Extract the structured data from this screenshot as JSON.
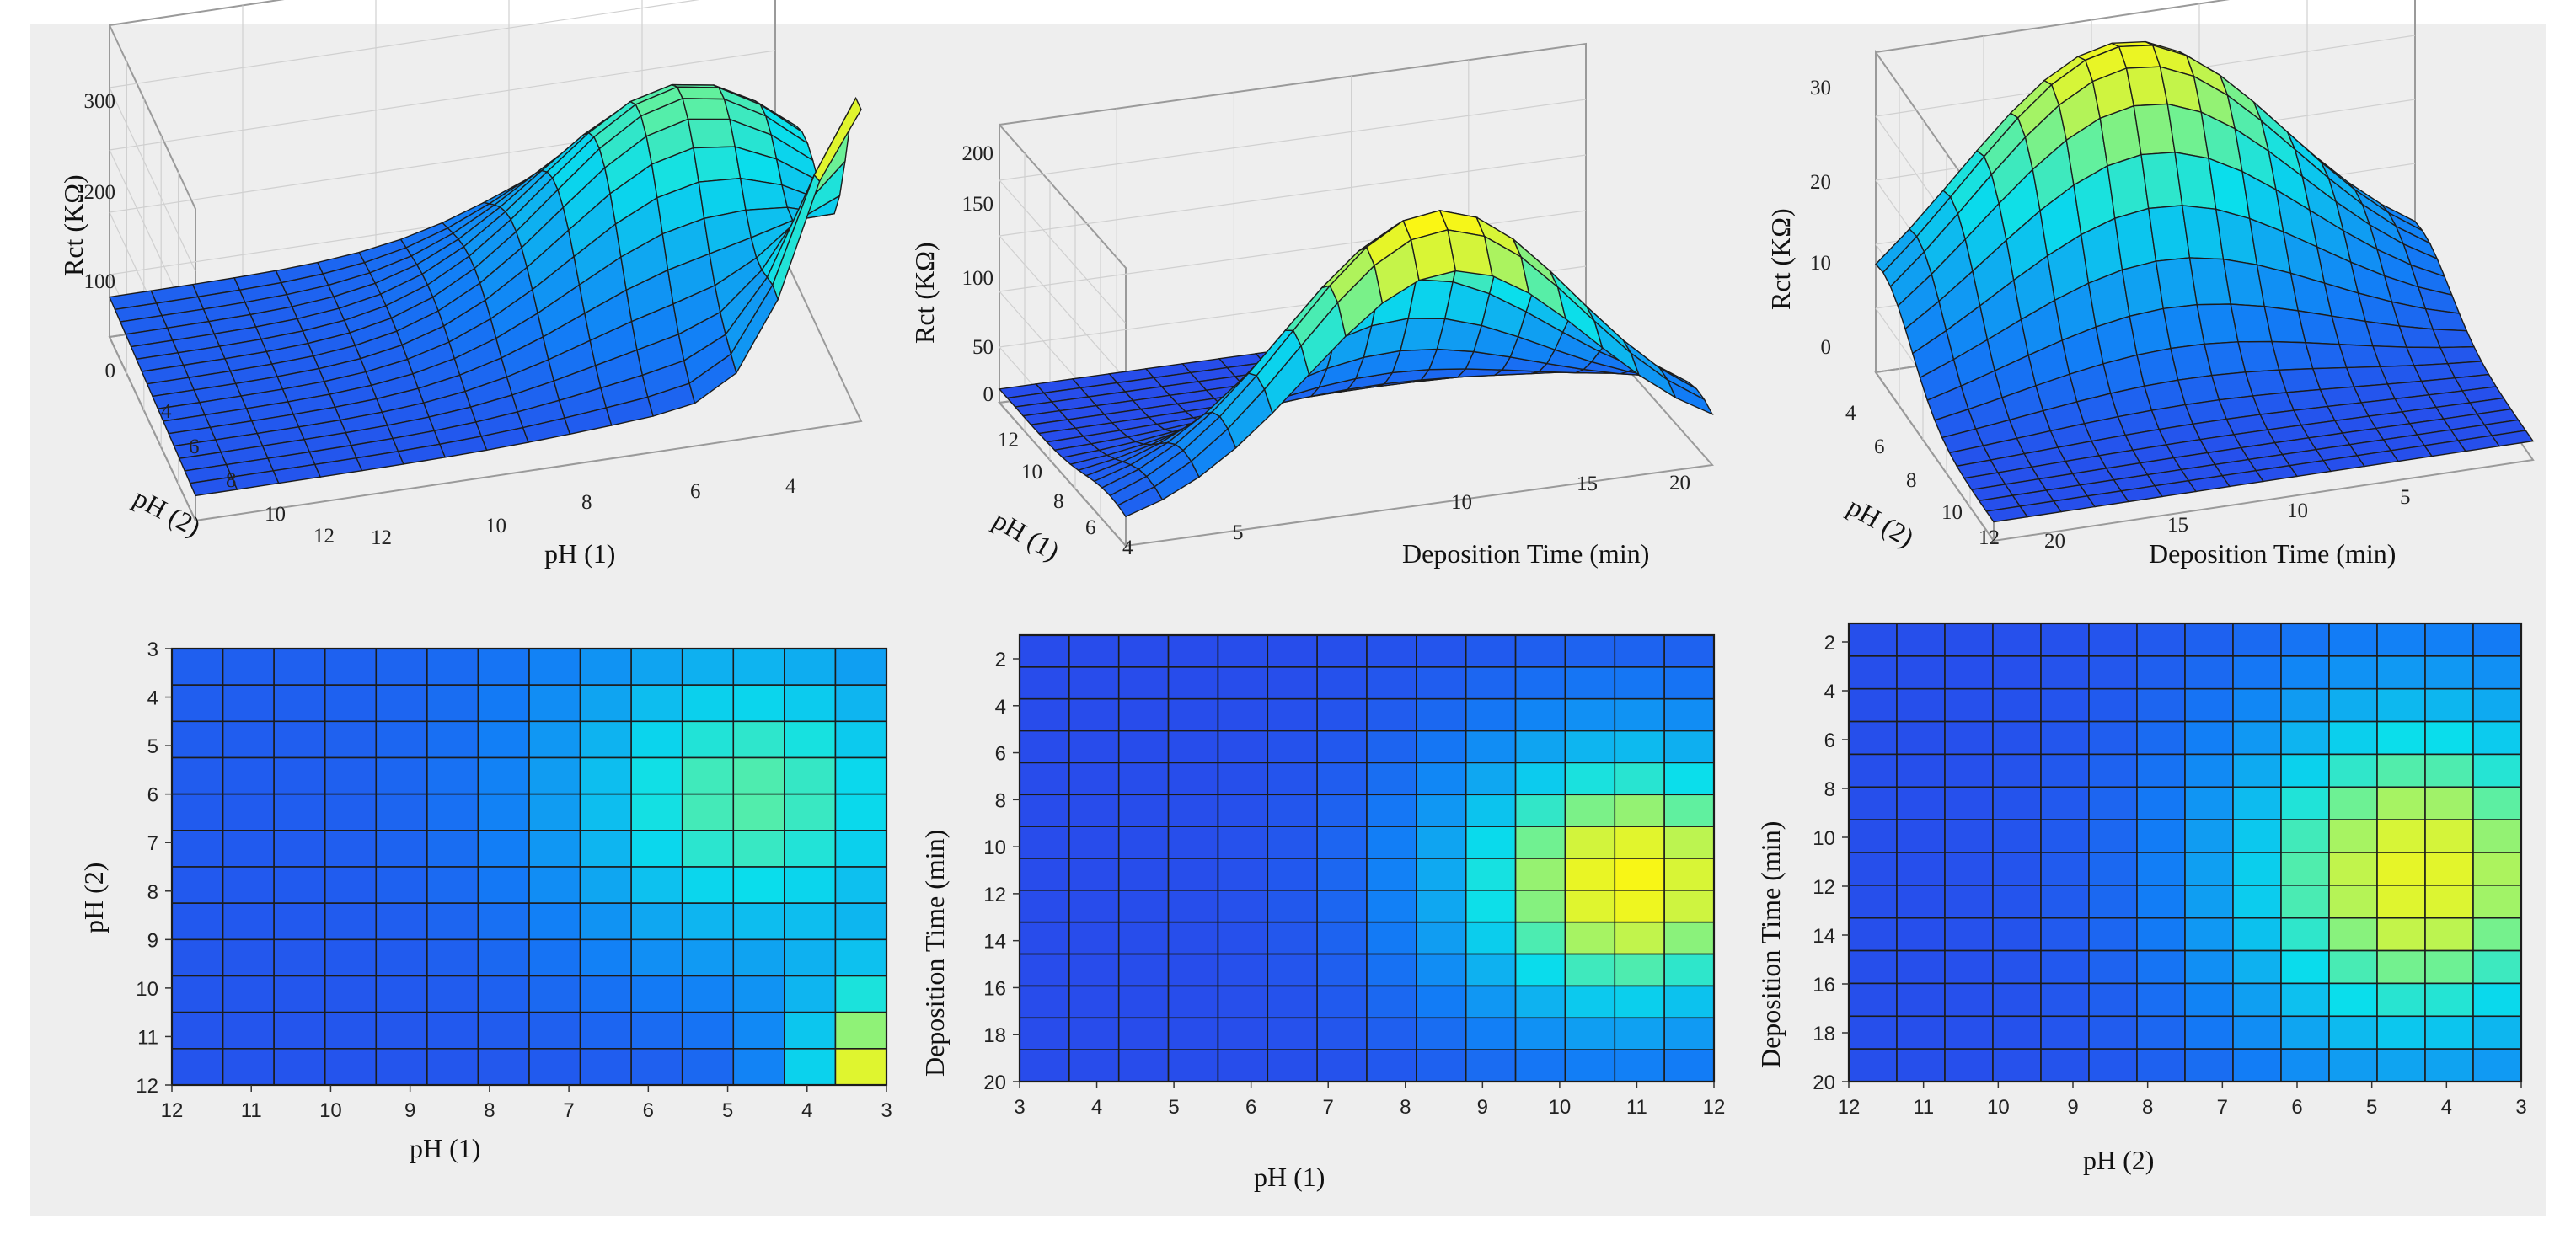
{
  "chart_data": [
    {
      "type": "surface",
      "title": "",
      "xlabel": "pH (1)",
      "ylabel": "pH (2)",
      "zlabel": "Rct (KΩ)",
      "x_ticks": [
        "12",
        "10",
        "8",
        "6",
        "4"
      ],
      "y_ticks": [
        "4",
        "6",
        "8",
        "10",
        "12"
      ],
      "z_ticks": [
        "0",
        "100",
        "200",
        "300"
      ],
      "zlim": [
        0,
        340
      ],
      "x_range": [
        3,
        12
      ],
      "y_range": [
        3,
        12
      ]
    },
    {
      "type": "surface",
      "title": "",
      "xlabel": "Deposition Time (min)",
      "ylabel": "pH (1)",
      "zlabel": "Rct (KΩ)",
      "x_ticks": [
        "5",
        "10",
        "15",
        "20"
      ],
      "y_ticks": [
        "12",
        "10",
        "8",
        "6",
        "4"
      ],
      "z_ticks": [
        "0",
        "50",
        "100",
        "150",
        "200"
      ],
      "zlim": [
        0,
        230
      ],
      "x_range": [
        1,
        20
      ],
      "y_range": [
        3,
        12
      ]
    },
    {
      "type": "surface",
      "title": "",
      "xlabel": "Deposition Time (min)",
      "ylabel": "pH (2)",
      "zlabel": "Rct (KΩ)",
      "x_ticks": [
        "20",
        "15",
        "10",
        "5"
      ],
      "y_ticks": [
        "4",
        "6",
        "8",
        "10",
        "12"
      ],
      "z_ticks": [
        "0",
        "10",
        "20",
        "30"
      ],
      "zlim": [
        -3,
        32
      ],
      "x_range": [
        1,
        20
      ],
      "y_range": [
        3,
        12
      ]
    },
    {
      "type": "heatmap",
      "xlabel": "pH (1)",
      "ylabel": "pH (2)",
      "x_ticks": [
        "12",
        "11",
        "10",
        "9",
        "8",
        "7",
        "6",
        "5",
        "4",
        "3"
      ],
      "y_ticks": [
        "3",
        "4",
        "5",
        "6",
        "7",
        "8",
        "9",
        "10",
        "11",
        "12"
      ],
      "x_range": [
        12,
        3
      ],
      "y_range": [
        3,
        12
      ]
    },
    {
      "type": "heatmap",
      "xlabel": "pH (1)",
      "ylabel": "Deposition Time (min)",
      "x_ticks": [
        "3",
        "4",
        "5",
        "6",
        "7",
        "8",
        "9",
        "10",
        "11",
        "12"
      ],
      "y_ticks": [
        "2",
        "4",
        "6",
        "8",
        "10",
        "12",
        "14",
        "16",
        "18",
        "20"
      ],
      "x_range": [
        3,
        12
      ],
      "y_range": [
        1,
        20
      ]
    },
    {
      "type": "heatmap",
      "xlabel": "pH (2)",
      "ylabel": "Deposition Time (min)",
      "x_ticks": [
        "12",
        "11",
        "10",
        "9",
        "8",
        "7",
        "6",
        "5",
        "4",
        "3"
      ],
      "y_ticks": [
        "2",
        "4",
        "6",
        "8",
        "10",
        "12",
        "14",
        "16",
        "18",
        "20"
      ],
      "x_range": [
        12,
        3
      ],
      "y_range": [
        1,
        20
      ]
    }
  ]
}
